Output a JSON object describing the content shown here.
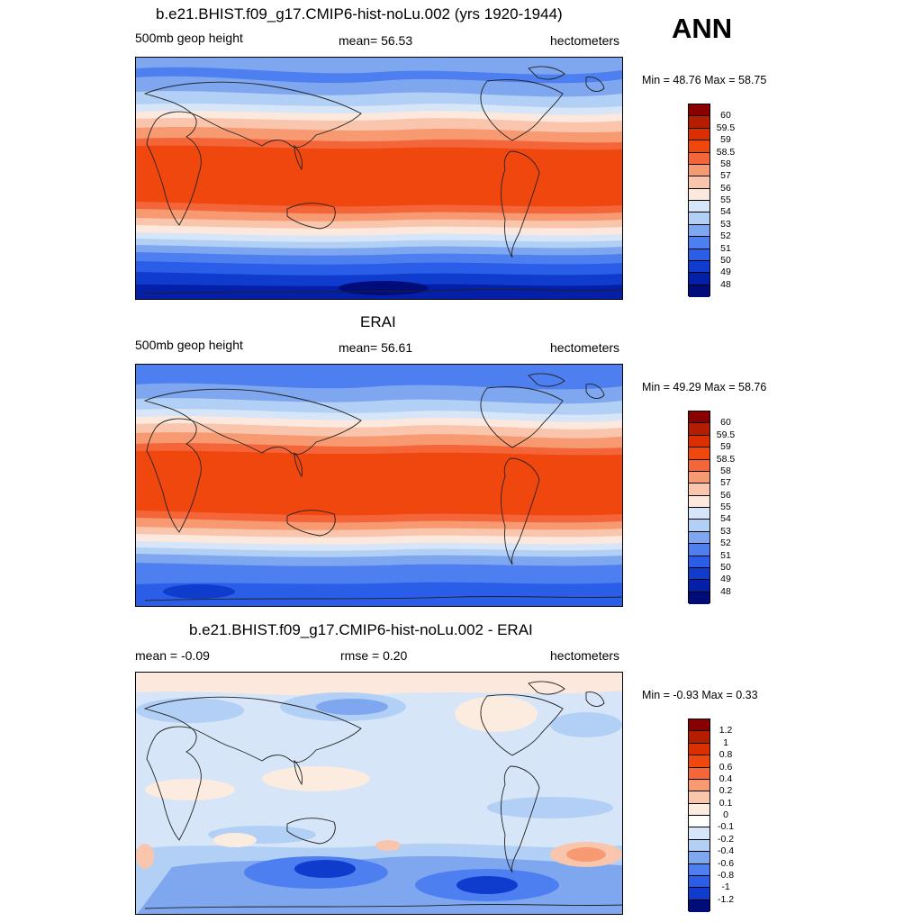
{
  "season": "ANN",
  "panels": [
    {
      "title": "b.e21.BHIST.f09_g17.CMIP6-hist-noLu.002 (yrs 1920-1944)",
      "left_label": "500mb geop height",
      "center_label": "mean=  56.53",
      "right_label": "hectometers",
      "minmax": "Min =  48.76 Max =  58.75",
      "colorbar": {
        "labels": [
          "60",
          "59.5",
          "59",
          "58.5",
          "58",
          "57",
          "56",
          "55",
          "54",
          "53",
          "52",
          "51",
          "50",
          "49",
          "48"
        ],
        "colors": [
          "#8a0000",
          "#b51d00",
          "#dc2f00",
          "#f0470f",
          "#f5653a",
          "#f79a72",
          "#fac5ad",
          "#fce8dc",
          "#d6e6f8",
          "#b2d0f5",
          "#7fa7f0",
          "#4d7ff0",
          "#2a5de8",
          "#0f3ccc",
          "#0520a8",
          "#000c7a"
        ]
      }
    },
    {
      "title": "ERAI",
      "left_label": "500mb geop height",
      "center_label": "mean=  56.61",
      "right_label": "hectometers",
      "minmax": "Min =  49.29 Max =  58.76",
      "colorbar": {
        "labels": [
          "60",
          "59.5",
          "59",
          "58.5",
          "58",
          "57",
          "56",
          "55",
          "54",
          "53",
          "52",
          "51",
          "50",
          "49",
          "48"
        ],
        "colors": [
          "#8a0000",
          "#b51d00",
          "#dc2f00",
          "#f0470f",
          "#f5653a",
          "#f79a72",
          "#fac5ad",
          "#fce8dc",
          "#d6e6f8",
          "#b2d0f5",
          "#7fa7f0",
          "#4d7ff0",
          "#2a5de8",
          "#0f3ccc",
          "#0520a8",
          "#000c7a"
        ]
      }
    },
    {
      "title": "b.e21.BHIST.f09_g17.CMIP6-hist-noLu.002 - ERAI",
      "left_label": "mean =  -0.09",
      "center_label": "rmse =   0.20",
      "right_label": "hectometers",
      "minmax": "Min =  -0.93 Max =   0.33",
      "colorbar": {
        "labels": [
          "1.2",
          "1",
          "0.8",
          "0.6",
          "0.4",
          "0.2",
          "0.1",
          "0",
          "-0.1",
          "-0.2",
          "-0.4",
          "-0.6",
          "-0.8",
          "-1",
          "-1.2"
        ],
        "colors": [
          "#8a0000",
          "#b51d00",
          "#dc2f00",
          "#f0470f",
          "#f5653a",
          "#f79a72",
          "#fac5ad",
          "#fcebdf",
          "#ffffff",
          "#d6e6f8",
          "#b2d0f5",
          "#7fa7f0",
          "#4d7ff0",
          "#2a5de8",
          "#0f3ccc",
          "#000c7a"
        ]
      }
    }
  ]
}
